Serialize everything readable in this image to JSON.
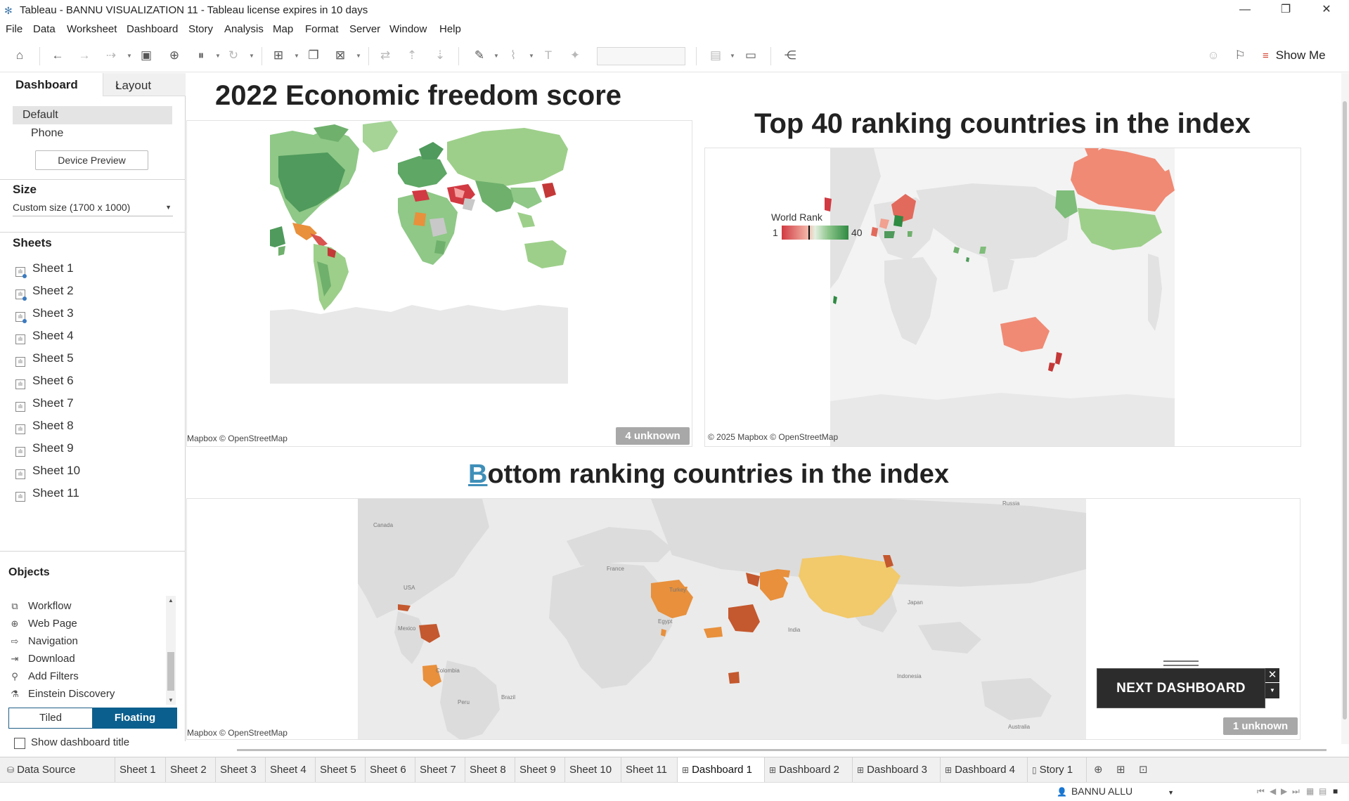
{
  "window": {
    "title": "Tableau - BANNU VISUALIZATION 11 - Tableau license expires in 10 days",
    "minimize": "—",
    "restore": "❐",
    "close": "✕"
  },
  "menu": [
    "File",
    "Data",
    "Worksheet",
    "Dashboard",
    "Story",
    "Analysis",
    "Map",
    "Format",
    "Server",
    "Window",
    "Help"
  ],
  "toolbar": {
    "show_me_label": "Show Me"
  },
  "left_panel": {
    "tabs": {
      "dashboard": "Dashboard",
      "layout": "Layout"
    },
    "devices": [
      "Default",
      "Phone"
    ],
    "device_preview_label": "Device Preview",
    "size_title": "Size",
    "size_value": "Custom size (1700 x 1000)",
    "sheets_title": "Sheets",
    "sheets": [
      "Sheet 1",
      "Sheet 2",
      "Sheet 3",
      "Sheet 4",
      "Sheet 5",
      "Sheet 6",
      "Sheet 7",
      "Sheet 8",
      "Sheet 9",
      "Sheet 10",
      "Sheet 11"
    ],
    "objects_title": "Objects",
    "objects": [
      {
        "label": "Workflow",
        "icon": "workflow-icon"
      },
      {
        "label": "Web Page",
        "icon": "globe-icon"
      },
      {
        "label": "Navigation",
        "icon": "navigation-icon"
      },
      {
        "label": "Download",
        "icon": "download-icon"
      },
      {
        "label": "Add Filters",
        "icon": "filter-icon"
      },
      {
        "label": "Einstein Discovery",
        "icon": "einstein-icon"
      }
    ],
    "tiled_label": "Tiled",
    "floating_label": "Floating",
    "show_title_label": "Show dashboard title"
  },
  "dashboard": {
    "title_1": "2022 Economic freedom score",
    "title_2": "Top 40 ranking countries in the index",
    "title_3_first": "B",
    "title_3_rest": "ottom ranking countries in the index",
    "map1": {
      "attribution": "Mapbox © OpenStreetMap",
      "unknown": "4 unknown"
    },
    "map2": {
      "attribution": "© 2025 Mapbox © OpenStreetMap",
      "legend_title": "World Rank",
      "legend_min": "1",
      "legend_max": "40"
    },
    "map3": {
      "attribution": "Mapbox © OpenStreetMap",
      "unknown": "1 unknown",
      "labels": [
        "Russia",
        "Canada",
        "USA",
        "France",
        "Turkey",
        "Mexico",
        "Egypt",
        "India",
        "Japan",
        "Colombia",
        "Brazil",
        "Peru",
        "Indonesia",
        "Australia"
      ]
    },
    "next_dashboard_label": "NEXT DASHBOARD"
  },
  "colors": {
    "accent_blue": "#0b5f8e",
    "map_green_dark": "#4f9a5c",
    "map_green_light": "#9dcf8a",
    "map_red": "#d13a42",
    "map_orange": "#e8903c",
    "map_yellow": "#f2c96b",
    "map_brown": "#c4582e"
  },
  "bottom_tabs": {
    "data_source": "Data Source",
    "tabs": [
      "Sheet 1",
      "Sheet 2",
      "Sheet 3",
      "Sheet 4",
      "Sheet 5",
      "Sheet 6",
      "Sheet 7",
      "Sheet 8",
      "Sheet 9",
      "Sheet 10",
      "Sheet 11"
    ],
    "dashboards": [
      "Dashboard 1",
      "Dashboard 2",
      "Dashboard 3",
      "Dashboard 4"
    ],
    "story": "Story 1",
    "active": "Dashboard 1"
  },
  "status": {
    "user": "BANNU ALLU"
  }
}
